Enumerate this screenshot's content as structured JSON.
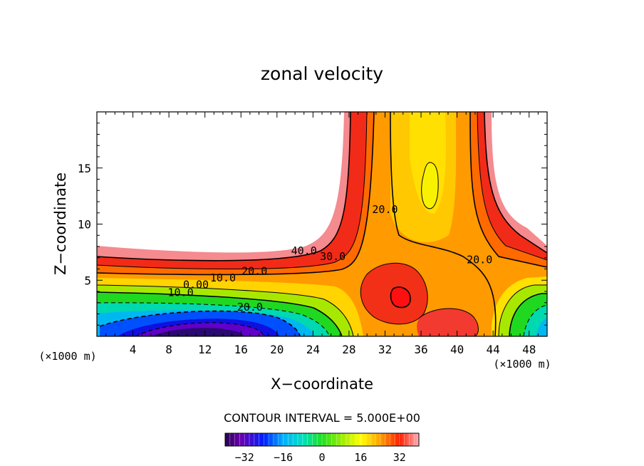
{
  "chart_data": {
    "type": "heatmap",
    "title": "zonal velocity",
    "xlabel": "X−coordinate",
    "ylabel": "Z−coordinate",
    "x_unit_left": "(×1000 m)",
    "x_unit_right": "(×1000 m)",
    "xlim": [
      0,
      50
    ],
    "ylim": [
      0,
      20
    ],
    "x_ticks": [
      4,
      8,
      12,
      16,
      20,
      24,
      28,
      32,
      36,
      40,
      44,
      48
    ],
    "y_ticks": [
      5,
      10,
      15
    ],
    "contour_interval_text": "CONTOUR INTERVAL = 5.000E+00",
    "colorbar": {
      "range": [
        -40,
        40
      ],
      "ticks": [
        "−32",
        "−16",
        "0",
        "16",
        "32"
      ],
      "tick_values": [
        -32,
        -16,
        0,
        16,
        32
      ]
    },
    "contour_labels": [
      {
        "text": "40.0",
        "x": 23.0,
        "z": 7.3
      },
      {
        "text": "30.0",
        "x": 26.2,
        "z": 6.8
      },
      {
        "text": "20.0",
        "x": 17.5,
        "z": 5.5
      },
      {
        "text": "10.0",
        "x": 14.0,
        "z": 4.9
      },
      {
        "text": "0.00",
        "x": 11.0,
        "z": 4.3
      },
      {
        "text": "10.0",
        "x": 9.3,
        "z": 3.6
      },
      {
        "text": "20.0",
        "x": 17.0,
        "z": 2.3
      },
      {
        "text": "20.0",
        "x": 32.0,
        "z": 11.0
      },
      {
        "text": "20.0",
        "x": 42.5,
        "z": 6.5
      }
    ]
  }
}
